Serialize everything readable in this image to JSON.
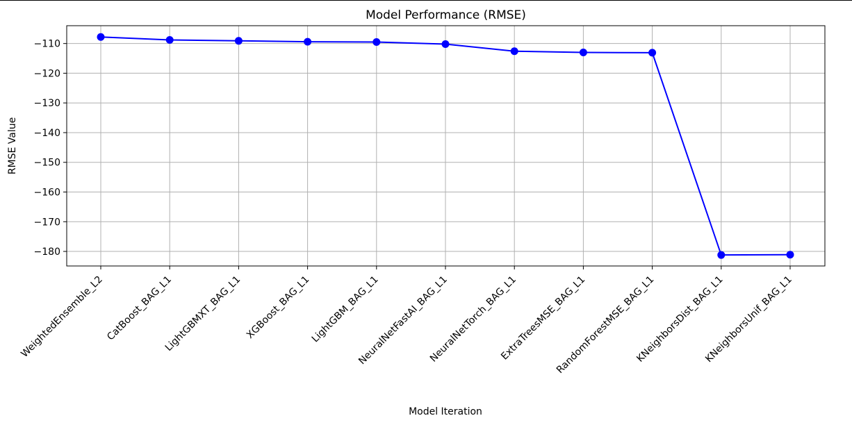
{
  "chart_data": {
    "type": "line",
    "title": "Model Performance (RMSE)",
    "xlabel": "Model Iteration",
    "ylabel": "RMSE Value",
    "categories": [
      "WeightedEnsemble_L2",
      "CatBoost_BAG_L1",
      "LightGBMXT_BAG_L1",
      "XGBoost_BAG_L1",
      "LightGBM_BAG_L1",
      "NeuralNetFastAI_BAG_L1",
      "NeuralNetTorch_BAG_L1",
      "ExtraTreesMSE_BAG_L1",
      "RandomForestMSE_BAG_L1",
      "KNeighborsDist_BAG_L1",
      "KNeighborsUnif_BAG_L1"
    ],
    "values": [
      -107.8,
      -108.8,
      -109.1,
      -109.4,
      -109.5,
      -110.2,
      -112.6,
      -113.0,
      -113.1,
      -181.2,
      -181.1
    ],
    "yticks": [
      -110,
      -120,
      -130,
      -140,
      -150,
      -160,
      -170,
      -180
    ],
    "ytick_labels": [
      "−110",
      "−120",
      "−130",
      "−140",
      "−150",
      "−160",
      "−170",
      "−180"
    ],
    "ylim": [
      -184.9,
      -104.0
    ],
    "grid": true,
    "line_color": "#0000ff",
    "marker": "circle"
  }
}
